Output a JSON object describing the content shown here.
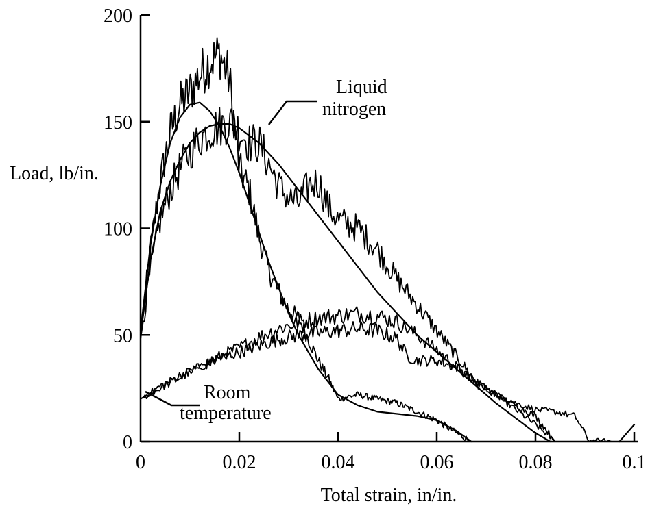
{
  "chart_data": {
    "type": "line",
    "title": "",
    "xlabel": "Total strain, in/in.",
    "ylabel": "Load, lb/in.",
    "xlim": [
      0,
      0.1
    ],
    "ylim": [
      0,
      200
    ],
    "x_ticks": [
      0,
      0.02,
      0.04,
      0.06,
      0.08,
      0.1
    ],
    "x_tick_labels": [
      "0",
      "0.02",
      "0.04",
      "0.06",
      "0.08",
      "0.1"
    ],
    "y_ticks": [
      0,
      50,
      100,
      150,
      200
    ],
    "y_tick_labels": [
      "0",
      "50",
      "100",
      "150",
      "200"
    ],
    "grid": false,
    "annotations": [
      {
        "lines": [
          "Liquid",
          "nitrogen"
        ]
      },
      {
        "lines": [
          "Room",
          "temperature"
        ]
      }
    ],
    "series": [
      {
        "style": "smooth",
        "x": [
          0,
          0.002,
          0.004,
          0.006,
          0.008,
          0.01,
          0.012,
          0.014,
          0.016,
          0.018,
          0.02,
          0.022,
          0.024,
          0.026,
          0.028,
          0.03,
          0.032,
          0.034,
          0.036,
          0.038,
          0.04,
          0.044,
          0.048,
          0.052,
          0.056,
          0.06,
          0.064,
          0.067
        ],
        "y": [
          52,
          92,
          120,
          140,
          152,
          158,
          159,
          155,
          148,
          138,
          126,
          112,
          98,
          84,
          72,
          60,
          50,
          42,
          34,
          28,
          22,
          17,
          14,
          13,
          12,
          10,
          5,
          0
        ]
      },
      {
        "style": "smooth",
        "x": [
          0,
          0.002,
          0.004,
          0.006,
          0.008,
          0.01,
          0.012,
          0.014,
          0.016,
          0.018,
          0.02,
          0.024,
          0.028,
          0.032,
          0.036,
          0.04,
          0.044,
          0.048,
          0.052,
          0.056,
          0.06,
          0.064,
          0.068,
          0.072,
          0.076,
          0.08,
          0.083
        ],
        "y": [
          50,
          85,
          108,
          122,
          132,
          140,
          145,
          148,
          149,
          149,
          147,
          140,
          130,
          118,
          106,
          94,
          82,
          70,
          60,
          50,
          42,
          34,
          26,
          18,
          11,
          4,
          0
        ]
      },
      {
        "style": "noisy",
        "x": [
          0,
          0.002,
          0.004,
          0.006,
          0.008,
          0.01,
          0.012,
          0.014,
          0.016,
          0.018,
          0.02,
          0.022,
          0.024,
          0.026,
          0.028,
          0.03,
          0.032,
          0.034,
          0.036,
          0.038,
          0.04,
          0.044,
          0.048,
          0.052,
          0.056,
          0.06,
          0.064,
          0.067
        ],
        "y": [
          50,
          90,
          122,
          145,
          158,
          164,
          172,
          178,
          182,
          170,
          128,
          118,
          96,
          80,
          70,
          62,
          58,
          48,
          38,
          30,
          20,
          22,
          20,
          18,
          14,
          10,
          4,
          0
        ]
      },
      {
        "style": "noisy",
        "x": [
          0,
          0.002,
          0.004,
          0.006,
          0.008,
          0.01,
          0.012,
          0.014,
          0.016,
          0.018,
          0.02,
          0.022,
          0.024,
          0.026,
          0.028,
          0.03,
          0.032,
          0.034,
          0.036,
          0.038,
          0.04,
          0.044,
          0.048,
          0.052,
          0.056,
          0.06,
          0.064,
          0.068,
          0.072,
          0.076,
          0.08,
          0.084
        ],
        "y": [
          48,
          80,
          104,
          118,
          128,
          136,
          142,
          146,
          148,
          150,
          146,
          140,
          140,
          130,
          120,
          114,
          112,
          120,
          122,
          110,
          104,
          100,
          90,
          76,
          64,
          52,
          40,
          28,
          22,
          15,
          8,
          0
        ]
      },
      {
        "style": "noisy",
        "x": [
          0,
          0.004,
          0.008,
          0.012,
          0.016,
          0.02,
          0.024,
          0.028,
          0.032,
          0.036,
          0.04,
          0.044,
          0.048,
          0.052,
          0.056,
          0.06,
          0.064,
          0.068,
          0.072,
          0.076,
          0.08,
          0.084,
          0.088,
          0.091,
          0.094,
          0.096
        ],
        "y": [
          20,
          25,
          30,
          35,
          40,
          44,
          49,
          53,
          56,
          58,
          59,
          60,
          59,
          56,
          50,
          43,
          35,
          27,
          22,
          18,
          15,
          14,
          12,
          0,
          0,
          0
        ]
      },
      {
        "style": "noisy",
        "x": [
          0,
          0.004,
          0.008,
          0.012,
          0.016,
          0.02,
          0.024,
          0.028,
          0.032,
          0.036,
          0.04,
          0.044,
          0.048,
          0.052,
          0.054,
          0.056,
          0.06,
          0.064,
          0.068,
          0.072,
          0.076,
          0.08,
          0.084
        ],
        "y": [
          20,
          26,
          31,
          35,
          39,
          42,
          45,
          48,
          50,
          51,
          52,
          53,
          52,
          48,
          40,
          38,
          38,
          35,
          28,
          22,
          17,
          12,
          0
        ]
      },
      {
        "style": "smooth",
        "x": [
          0.097,
          0.1
        ],
        "y": [
          0,
          8
        ]
      }
    ]
  }
}
